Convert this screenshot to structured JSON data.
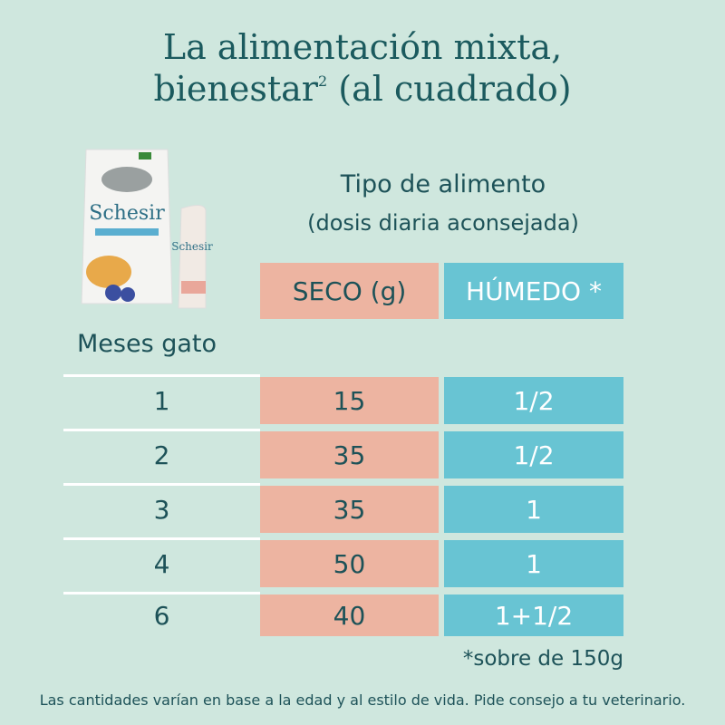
{
  "title": {
    "line1": "La alimentación mixta,",
    "line2_main": "bienestar",
    "line2_sup": "2",
    "line2_rest": "(al cuadrado)"
  },
  "product": {
    "bag_brand": "Schesir",
    "pouch_brand": "Schesir"
  },
  "header": {
    "title": "Tipo de alimento",
    "subtitle": "(dosis diaria aconsejada)"
  },
  "table": {
    "row_header": "Meses gato",
    "columns": [
      "SECO (g)",
      "HÚMEDO *"
    ],
    "rows": [
      [
        "1",
        "15",
        "1/2"
      ],
      [
        "2",
        "35",
        "1/2"
      ],
      [
        "3",
        "35",
        "1"
      ],
      [
        "4",
        "50",
        "1"
      ],
      [
        "6",
        "40",
        "1+1/2"
      ]
    ]
  },
  "footnote": "*sobre de 150g",
  "disclaimer": "Las cantidades varían en base a la edad y al estilo de vida. Pide consejo a tu veterinario."
}
